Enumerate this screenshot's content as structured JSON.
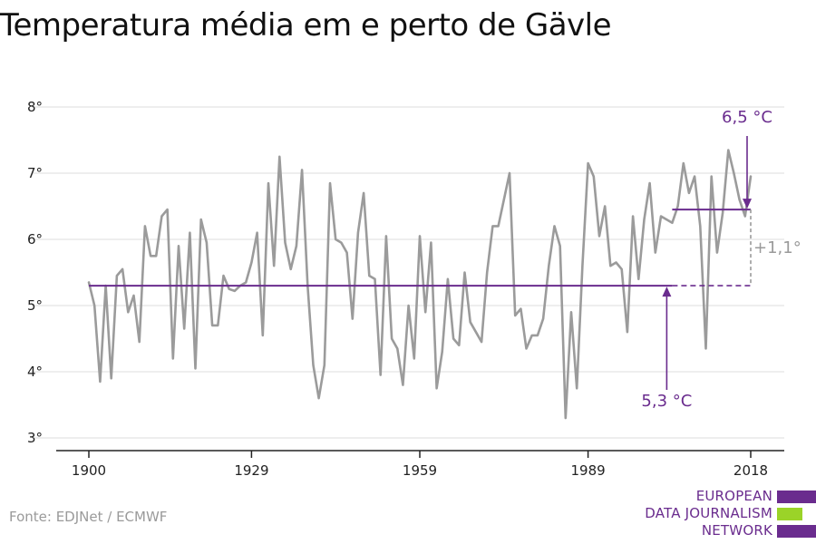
{
  "title": "Temperatura média em e perto de Gävle",
  "source": "Fonte: EDJNet / ECMWF",
  "logo": {
    "lines": [
      "EUROPEAN",
      "DATA JOURNALISM",
      "NETWORK"
    ],
    "colors": {
      "purple": "#6a2c8e",
      "green": "#9bd328"
    }
  },
  "colors": {
    "series": "#9b9b9b",
    "accent": "#6a2c8e",
    "annotation_grey": "#9a9a9a",
    "grid": "#dddddd"
  },
  "chart_data": {
    "type": "line",
    "title": "Temperatura média em e perto de Gävle",
    "xlabel": "",
    "ylabel": "",
    "xlim": [
      1900,
      2018
    ],
    "ylim": [
      3,
      8
    ],
    "x_ticks": [
      1900,
      1929,
      1959,
      1989,
      2018
    ],
    "y_ticks": [
      3,
      4,
      5,
      6,
      7,
      8
    ],
    "y_tick_labels": [
      "3°",
      "4°",
      "5°",
      "6°",
      "7°",
      "8°"
    ],
    "grid": "horizontal",
    "series": [
      {
        "x": [
          1900,
          1901,
          1902,
          1903,
          1904,
          1905,
          1906,
          1907,
          1908,
          1909,
          1910,
          1911,
          1912,
          1913,
          1914,
          1915,
          1916,
          1917,
          1918,
          1919,
          1920,
          1921,
          1922,
          1923,
          1924,
          1925,
          1926,
          1927,
          1928,
          1929,
          1930,
          1931,
          1932,
          1933,
          1934,
          1935,
          1936,
          1937,
          1938,
          1939,
          1940,
          1941,
          1942,
          1943,
          1944,
          1945,
          1946,
          1947,
          1948,
          1949,
          1950,
          1951,
          1952,
          1953,
          1954,
          1955,
          1956,
          1957,
          1958,
          1959,
          1960,
          1961,
          1962,
          1963,
          1964,
          1965,
          1966,
          1967,
          1968,
          1969,
          1970,
          1971,
          1972,
          1973,
          1974,
          1975,
          1976,
          1977,
          1978,
          1979,
          1980,
          1981,
          1982,
          1983,
          1984,
          1985,
          1986,
          1987,
          1988,
          1989,
          1990,
          1991,
          1992,
          1993,
          1994,
          1995,
          1996,
          1997,
          1998,
          1999,
          2000,
          2001,
          2002,
          2003,
          2004,
          2005,
          2006,
          2007,
          2008,
          2009,
          2010,
          2011,
          2012,
          2013,
          2014,
          2015,
          2016,
          2017,
          2018
        ],
        "values": [
          5.35,
          5.0,
          3.85,
          5.3,
          3.9,
          5.45,
          5.55,
          4.9,
          5.15,
          4.45,
          6.2,
          5.75,
          5.75,
          6.35,
          6.45,
          4.2,
          5.9,
          4.65,
          6.1,
          4.05,
          6.3,
          5.95,
          4.7,
          4.7,
          5.45,
          5.25,
          5.22,
          5.3,
          5.35,
          5.65,
          6.1,
          4.55,
          6.85,
          5.6,
          7.25,
          5.95,
          5.55,
          5.9,
          7.05,
          5.3,
          4.1,
          3.6,
          4.1,
          6.85,
          6.0,
          5.95,
          5.8,
          4.8,
          6.1,
          6.7,
          5.45,
          5.4,
          3.95,
          6.05,
          4.5,
          4.35,
          3.8,
          5.0,
          4.2,
          6.05,
          4.9,
          5.95,
          3.75,
          4.3,
          5.4,
          4.5,
          4.4,
          5.5,
          4.75,
          4.6,
          4.45,
          5.5,
          6.2,
          6.2,
          6.6,
          7.0,
          4.85,
          4.95,
          4.35,
          4.55,
          4.55,
          4.8,
          5.6,
          6.2,
          5.9,
          3.3,
          4.9,
          3.75,
          5.6,
          7.15,
          6.95,
          6.05,
          6.5,
          5.6,
          5.65,
          5.55,
          4.6,
          6.35,
          5.4,
          6.3,
          6.85,
          5.8,
          6.35,
          6.3,
          6.25,
          6.5,
          7.15,
          6.7,
          6.95,
          6.2,
          4.35,
          6.95,
          5.8,
          6.4,
          7.35,
          7.0,
          6.6,
          6.35,
          6.95
        ]
      }
    ],
    "annotations": {
      "baseline_value": 5.3,
      "baseline_label": "5,3 °C",
      "baseline_x_range": [
        1900,
        2004
      ],
      "recent_value": 6.45,
      "recent_label": "6,5 °C",
      "recent_x_range": [
        2004,
        2018
      ],
      "difference_label": "+1,1°"
    }
  }
}
